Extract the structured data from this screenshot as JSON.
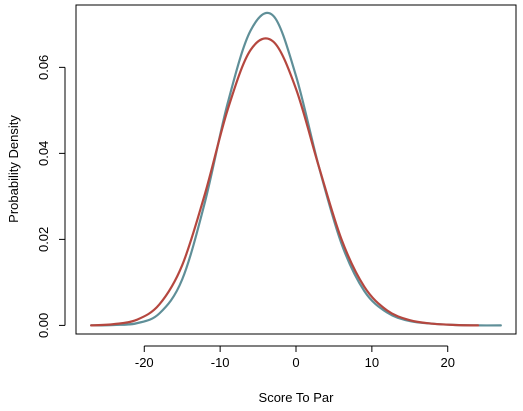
{
  "chart_data": {
    "type": "line",
    "title": "",
    "xlabel": "Score To Par",
    "ylabel": "Probability Density",
    "xlim": [
      -29,
      29
    ],
    "ylim": [
      -0.002,
      0.0745
    ],
    "x_ticks": [
      -20,
      -10,
      0,
      10,
      20
    ],
    "y_ticks": [
      0.0,
      0.02,
      0.04,
      0.06
    ],
    "y_tick_labels": [
      "0.00",
      "0.02",
      "0.04",
      "0.06"
    ],
    "grid": false,
    "legend": "none",
    "series": [
      {
        "color": "#5f8f98",
        "x": [
          -27,
          -24,
          -21,
          -18,
          -15,
          -12,
          -9,
          -6,
          -3,
          0,
          3,
          6,
          9,
          12,
          15,
          18,
          21,
          24,
          27
        ],
        "y": [
          0.0,
          0.0001,
          0.0005,
          0.0028,
          0.0107,
          0.0287,
          0.0517,
          0.0685,
          0.072,
          0.058,
          0.037,
          0.019,
          0.008,
          0.003,
          0.001,
          0.0004,
          0.0001,
          0.0,
          0.0
        ]
      },
      {
        "color": "#b5473f",
        "x": [
          -27,
          -24,
          -21,
          -18,
          -15,
          -12,
          -9,
          -6,
          -3,
          0,
          3,
          6,
          9,
          12,
          15,
          18,
          21,
          24
        ],
        "y": [
          0.0,
          0.0003,
          0.0013,
          0.0049,
          0.014,
          0.0306,
          0.0502,
          0.064,
          0.066,
          0.055,
          0.037,
          0.02,
          0.009,
          0.0035,
          0.0012,
          0.0004,
          0.0001,
          0.0
        ]
      }
    ]
  }
}
